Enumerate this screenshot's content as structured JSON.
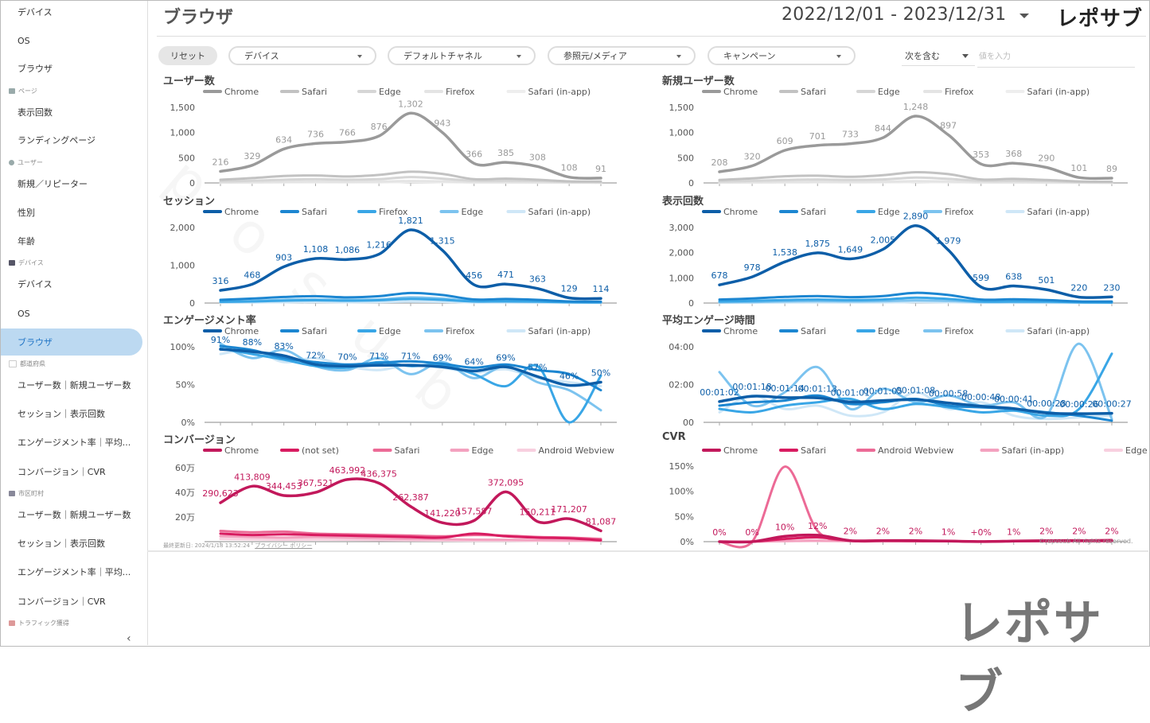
{
  "page": {
    "title": "ブラウザ",
    "date_range": "2022/12/01 - 2023/12/31",
    "logo": "レポサブ",
    "logo_big": "レポサブ",
    "watermark": "reposub"
  },
  "sidebar": {
    "items": [
      {
        "label": "デバイス"
      },
      {
        "label": "OS"
      },
      {
        "label": "ブラウザ"
      },
      {
        "label": "表示回数"
      },
      {
        "label": "ランディングページ"
      },
      {
        "label": "新規／リピーター"
      },
      {
        "label": "性別"
      },
      {
        "label": "年齢"
      },
      {
        "label": "デバイス"
      },
      {
        "label": "OS"
      },
      {
        "label": "ブラウザ"
      },
      {
        "label": "ユーザー数｜新規ユーザー数"
      },
      {
        "label": "セッション｜表示回数"
      },
      {
        "label": "エンゲージメント率｜平均..."
      },
      {
        "label": "コンバージョン｜CVR"
      },
      {
        "label": "ユーザー数｜新規ユーザー数"
      },
      {
        "label": "セッション｜表示回数"
      },
      {
        "label": "エンゲージメント率｜平均..."
      },
      {
        "label": "コンバージョン｜CVR"
      }
    ],
    "sections": [
      {
        "label": "ページ"
      },
      {
        "label": "ユーザー"
      },
      {
        "label": "デバイス"
      },
      {
        "label": "都道府県"
      },
      {
        "label": "市区町村"
      },
      {
        "label": "トラフィック獲得"
      }
    ],
    "collapse": "‹"
  },
  "filters": {
    "reset": "リセット",
    "device": "デバイス",
    "channel": "デフォルトチャネル",
    "source": "参照元/メディア",
    "campaign": "キャンペーン",
    "include": "次を含む",
    "value_placeholder": "値を入力"
  },
  "footer": {
    "updated": "最終更新日: 2024/1/18 13:52:24",
    "privacy": "プライバシー ポリシー",
    "copyright": "©reposub All rights reserved."
  },
  "colors": {
    "gray": "#9a9a9a",
    "blue": "#1a6fb5",
    "pink": "#d81b60"
  },
  "chart_data": [
    {
      "type": "line",
      "title": "ユーザー数",
      "legend": [
        "Chrome",
        "Safari",
        "Edge",
        "Firefox",
        "Safari (in-app)"
      ],
      "legend_colors": [
        "#9a9a9a",
        "#c2c2c2",
        "#d6d6d6",
        "#e4e4e4",
        "#eeeeee"
      ],
      "yticks": [
        "1,500",
        "1,000",
        "500",
        "0"
      ],
      "ylim": [
        0,
        1500
      ],
      "series": [
        {
          "name": "Chrome",
          "values": [
            216,
            329,
            634,
            736,
            766,
            876,
            1302,
            943,
            366,
            385,
            308,
            108,
            91
          ],
          "labels": [
            "216",
            "329",
            "634",
            "736",
            "766",
            "876",
            "1,302",
            "943",
            "366",
            "385",
            "308",
            "108",
            "91"
          ]
        },
        {
          "name": "Safari",
          "values": [
            60,
            90,
            130,
            140,
            120,
            150,
            210,
            170,
            70,
            80,
            60,
            30,
            25
          ]
        },
        {
          "name": "Edge",
          "values": [
            30,
            40,
            60,
            70,
            60,
            70,
            110,
            80,
            40,
            40,
            35,
            20,
            15
          ]
        },
        {
          "name": "Firefox",
          "values": [
            10,
            15,
            20,
            25,
            20,
            25,
            35,
            30,
            15,
            15,
            10,
            8,
            6
          ]
        },
        {
          "name": "Safari (in-app)",
          "values": [
            5,
            8,
            10,
            12,
            10,
            12,
            18,
            15,
            8,
            8,
            6,
            4,
            3
          ]
        }
      ]
    },
    {
      "type": "line",
      "title": "新規ユーザー数",
      "legend": [
        "Chrome",
        "Safari",
        "Edge",
        "Firefox",
        "Safari (in-app)"
      ],
      "legend_colors": [
        "#9a9a9a",
        "#c2c2c2",
        "#d6d6d6",
        "#e4e4e4",
        "#eeeeee"
      ],
      "yticks": [
        "1,500",
        "1,000",
        "500",
        "0"
      ],
      "ylim": [
        0,
        1500
      ],
      "series": [
        {
          "name": "Chrome",
          "values": [
            208,
            320,
            609,
            701,
            733,
            844,
            1248,
            897,
            353,
            368,
            290,
            101,
            89
          ],
          "labels": [
            "208",
            "320",
            "609",
            "701",
            "733",
            "844",
            "1,248",
            "897",
            "353",
            "368",
            "290",
            "101",
            "89"
          ]
        },
        {
          "name": "Safari",
          "values": [
            55,
            85,
            125,
            135,
            115,
            145,
            200,
            165,
            65,
            75,
            55,
            28,
            22
          ]
        },
        {
          "name": "Edge",
          "values": [
            28,
            38,
            55,
            65,
            55,
            65,
            100,
            75,
            38,
            38,
            32,
            18,
            14
          ]
        },
        {
          "name": "Firefox",
          "values": [
            10,
            14,
            18,
            22,
            18,
            22,
            32,
            28,
            14,
            14,
            10,
            7,
            5
          ]
        },
        {
          "name": "Safari (in-app)",
          "values": [
            5,
            7,
            9,
            11,
            9,
            11,
            16,
            14,
            7,
            7,
            5,
            4,
            3
          ]
        }
      ]
    },
    {
      "type": "line",
      "title": "セッション",
      "legend": [
        "Chrome",
        "Safari",
        "Firefox",
        "Edge",
        "Safari (in-app)"
      ],
      "legend_colors": [
        "#0d5ea8",
        "#1c86d1",
        "#39a6e6",
        "#7cc3ef",
        "#cfe7f7"
      ],
      "yticks": [
        "2,000",
        "1,000",
        "0"
      ],
      "ylim": [
        0,
        2000
      ],
      "series": [
        {
          "name": "Chrome",
          "values": [
            316,
            468,
            903,
            1108,
            1086,
            1216,
            1821,
            1315,
            456,
            471,
            363,
            129,
            114
          ],
          "labels": [
            "316",
            "468",
            "903",
            "1,108",
            "1,086",
            "1,216",
            "1,821",
            "1,315",
            "456",
            "471",
            "363",
            "129",
            "114"
          ]
        },
        {
          "name": "Safari",
          "values": [
            80,
            110,
            150,
            170,
            140,
            170,
            250,
            200,
            90,
            100,
            80,
            40,
            35
          ]
        },
        {
          "name": "Firefox",
          "values": [
            30,
            40,
            60,
            70,
            60,
            70,
            100,
            80,
            40,
            40,
            35,
            20,
            15
          ]
        },
        {
          "name": "Edge",
          "values": [
            40,
            50,
            80,
            90,
            80,
            90,
            140,
            110,
            50,
            50,
            45,
            25,
            20
          ]
        },
        {
          "name": "Safari (in-app)",
          "values": [
            10,
            15,
            20,
            25,
            20,
            25,
            35,
            30,
            15,
            15,
            10,
            8,
            6
          ]
        }
      ]
    },
    {
      "type": "line",
      "title": "表示回数",
      "legend": [
        "Chrome",
        "Safari",
        "Edge",
        "Firefox",
        "Safari (in-app)"
      ],
      "legend_colors": [
        "#0d5ea8",
        "#1c86d1",
        "#39a6e6",
        "#7cc3ef",
        "#cfe7f7"
      ],
      "yticks": [
        "3,000",
        "2,000",
        "1,000",
        "0"
      ],
      "ylim": [
        0,
        3000
      ],
      "series": [
        {
          "name": "Chrome",
          "values": [
            678,
            978,
            1538,
            1875,
            1649,
            2005,
            2890,
            1979,
            599,
            638,
            501,
            220,
            230
          ],
          "labels": [
            "678",
            "978",
            "1,538",
            "1,875",
            "1,649",
            "2,005",
            "2,890",
            "1,979",
            "599",
            "638",
            "501",
            "220",
            "230"
          ]
        },
        {
          "name": "Safari",
          "values": [
            130,
            170,
            230,
            260,
            220,
            260,
            380,
            300,
            130,
            140,
            110,
            60,
            55
          ]
        },
        {
          "name": "Edge",
          "values": [
            60,
            80,
            110,
            130,
            110,
            130,
            200,
            150,
            60,
            60,
            55,
            30,
            25
          ]
        },
        {
          "name": "Firefox",
          "values": [
            30,
            40,
            60,
            70,
            60,
            70,
            100,
            80,
            40,
            40,
            35,
            20,
            15
          ]
        },
        {
          "name": "Safari (in-app)",
          "values": [
            10,
            15,
            20,
            25,
            20,
            25,
            35,
            30,
            15,
            15,
            10,
            8,
            6
          ]
        }
      ]
    },
    {
      "type": "line",
      "title": "エンゲージメント率",
      "legend": [
        "Chrome",
        "Safari",
        "Edge",
        "Firefox",
        "Safari (in-app)"
      ],
      "legend_colors": [
        "#0d5ea8",
        "#1c86d1",
        "#39a6e6",
        "#7cc3ef",
        "#cfe7f7"
      ],
      "yticks": [
        "100%",
        "50%",
        "0%"
      ],
      "ylim": [
        0,
        100
      ],
      "series": [
        {
          "name": "Chrome",
          "values": [
            91,
            88,
            83,
            72,
            70,
            71,
            71,
            69,
            64,
            69,
            57,
            46,
            50
          ],
          "labels": [
            "91%",
            "88%",
            "83%",
            "72%",
            "70%",
            "71%",
            "71%",
            "69%",
            "64%",
            "69%",
            "57%",
            "46%",
            "50%"
          ]
        },
        {
          "name": "Safari",
          "values": [
            95,
            90,
            80,
            75,
            72,
            74,
            76,
            73,
            68,
            72,
            65,
            60,
            40
          ]
        },
        {
          "name": "Edge",
          "values": [
            92,
            85,
            78,
            70,
            68,
            75,
            70,
            72,
            60,
            45,
            70,
            0,
            58
          ]
        },
        {
          "name": "Firefox",
          "values": [
            98,
            80,
            90,
            70,
            65,
            80,
            60,
            75,
            55,
            70,
            50,
            40,
            15
          ]
        },
        {
          "name": "Safari (in-app)",
          "values": [
            85,
            90,
            75,
            80,
            70,
            65,
            72,
            68,
            62,
            66,
            55,
            50,
            45
          ]
        }
      ]
    },
    {
      "type": "line",
      "title": "平均エンゲージ時間",
      "legend": [
        "Chrome",
        "Safari",
        "Edge",
        "Firefox",
        "Safari (in-app)"
      ],
      "legend_colors": [
        "#0d5ea8",
        "#1c86d1",
        "#39a6e6",
        "#7cc3ef",
        "#cfe7f7"
      ],
      "yticks": [
        "04:00",
        "02:00",
        "00"
      ],
      "ylim": [
        0,
        240
      ],
      "series": [
        {
          "name": "Chrome",
          "values": [
            62,
            78,
            74,
            73,
            61,
            65,
            68,
            58,
            48,
            41,
            28,
            26,
            27
          ],
          "labels": [
            "00:01:02",
            "00:01:18",
            "00:01:14",
            "00:01:13",
            "00:01:01",
            "00:01:05",
            "00:01:08",
            "00:00:58",
            "00:00:48",
            "00:00:41",
            "00:00:28",
            "00:00:26",
            "00:00:27"
          ]
        },
        {
          "name": "Safari",
          "values": [
            50,
            60,
            65,
            80,
            55,
            60,
            70,
            50,
            45,
            40,
            30,
            20,
            5
          ]
        },
        {
          "name": "Edge",
          "values": [
            40,
            30,
            50,
            60,
            70,
            40,
            55,
            45,
            30,
            35,
            20,
            40,
            205
          ]
        },
        {
          "name": "Firefox",
          "values": [
            150,
            50,
            90,
            165,
            40,
            100,
            60,
            80,
            50,
            60,
            20,
            235,
            10
          ]
        },
        {
          "name": "Safari (in-app)",
          "values": [
            30,
            80,
            40,
            50,
            20,
            30,
            90,
            40,
            60,
            20,
            10,
            15,
            20
          ]
        }
      ]
    },
    {
      "type": "line",
      "title": "コンバージョン",
      "legend": [
        "Chrome",
        "(not set)",
        "Safari",
        "Edge",
        "Android Webview"
      ],
      "legend_colors": [
        "#c2185b",
        "#d81b60",
        "#ec6a96",
        "#f3a1bf",
        "#f8cfdf"
      ],
      "yticks": [
        "60万",
        "40万",
        "20万"
      ],
      "ylim": [
        0,
        600000
      ],
      "series": [
        {
          "name": "Chrome",
          "values": [
            290623,
            413809,
            344453,
            367521,
            463992,
            436375,
            262387,
            141220,
            157587,
            372095,
            150211,
            171207,
            81087
          ],
          "labels": [
            "290,623",
            "413,809",
            "344,453",
            "367,521",
            "463,992",
            "436,375",
            "262,387",
            "141,220",
            "157,587",
            "372,095",
            "150,211",
            "171,207",
            "81,087"
          ]
        },
        {
          "name": "(not set)",
          "values": [
            60000,
            50000,
            55000,
            50000,
            45000,
            40000,
            35000,
            30000,
            60000,
            40000,
            30000,
            25000,
            10000
          ]
        },
        {
          "name": "Safari",
          "values": [
            80000,
            70000,
            75000,
            60000,
            55000,
            50000,
            45000,
            40000,
            50000,
            45000,
            35000,
            30000,
            20000
          ]
        },
        {
          "name": "Edge",
          "values": [
            40000,
            35000,
            30000,
            35000,
            30000,
            25000,
            20000,
            18000,
            15000,
            14000,
            12000,
            10000,
            8000
          ]
        },
        {
          "name": "Android Webview",
          "values": [
            20000,
            18000,
            15000,
            17000,
            15000,
            12000,
            10000,
            9000,
            8000,
            7000,
            6000,
            5000,
            4000
          ]
        }
      ]
    },
    {
      "type": "line",
      "title": "CVR",
      "legend": [
        "Chrome",
        "Safari",
        "Android Webview",
        "Safari (in-app)",
        "Edge"
      ],
      "legend_colors": [
        "#c2185b",
        "#d81b60",
        "#ec6a96",
        "#f3a1bf",
        "#f8cfdf"
      ],
      "yticks": [
        "150%",
        "100%",
        "50%",
        "0%"
      ],
      "ylim": [
        0,
        150
      ],
      "series": [
        {
          "name": "Chrome",
          "values": [
            0,
            0,
            10,
            12,
            2,
            2,
            2,
            1,
            0.2,
            1,
            2,
            2,
            2
          ],
          "labels": [
            "0%",
            "0%",
            "10%",
            "12%",
            "2%",
            "2%",
            "2%",
            "1%",
            "+0%",
            "1%",
            "2%",
            "2%",
            "2%"
          ]
        },
        {
          "name": "Safari",
          "values": [
            0,
            0,
            5,
            8,
            2,
            2,
            1,
            1,
            0,
            1,
            1,
            2,
            3
          ]
        },
        {
          "name": "Android Webview",
          "values": [
            0,
            0,
            140,
            20,
            2,
            1,
            1,
            1,
            0,
            1,
            1,
            1,
            1
          ]
        },
        {
          "name": "Safari (in-app)",
          "values": [
            0,
            0,
            1,
            2,
            1,
            1,
            1,
            1,
            0,
            1,
            1,
            1,
            1
          ]
        },
        {
          "name": "Edge",
          "values": [
            0,
            0,
            1,
            1,
            1,
            1,
            1,
            1,
            0,
            1,
            1,
            1,
            1
          ]
        }
      ]
    }
  ]
}
